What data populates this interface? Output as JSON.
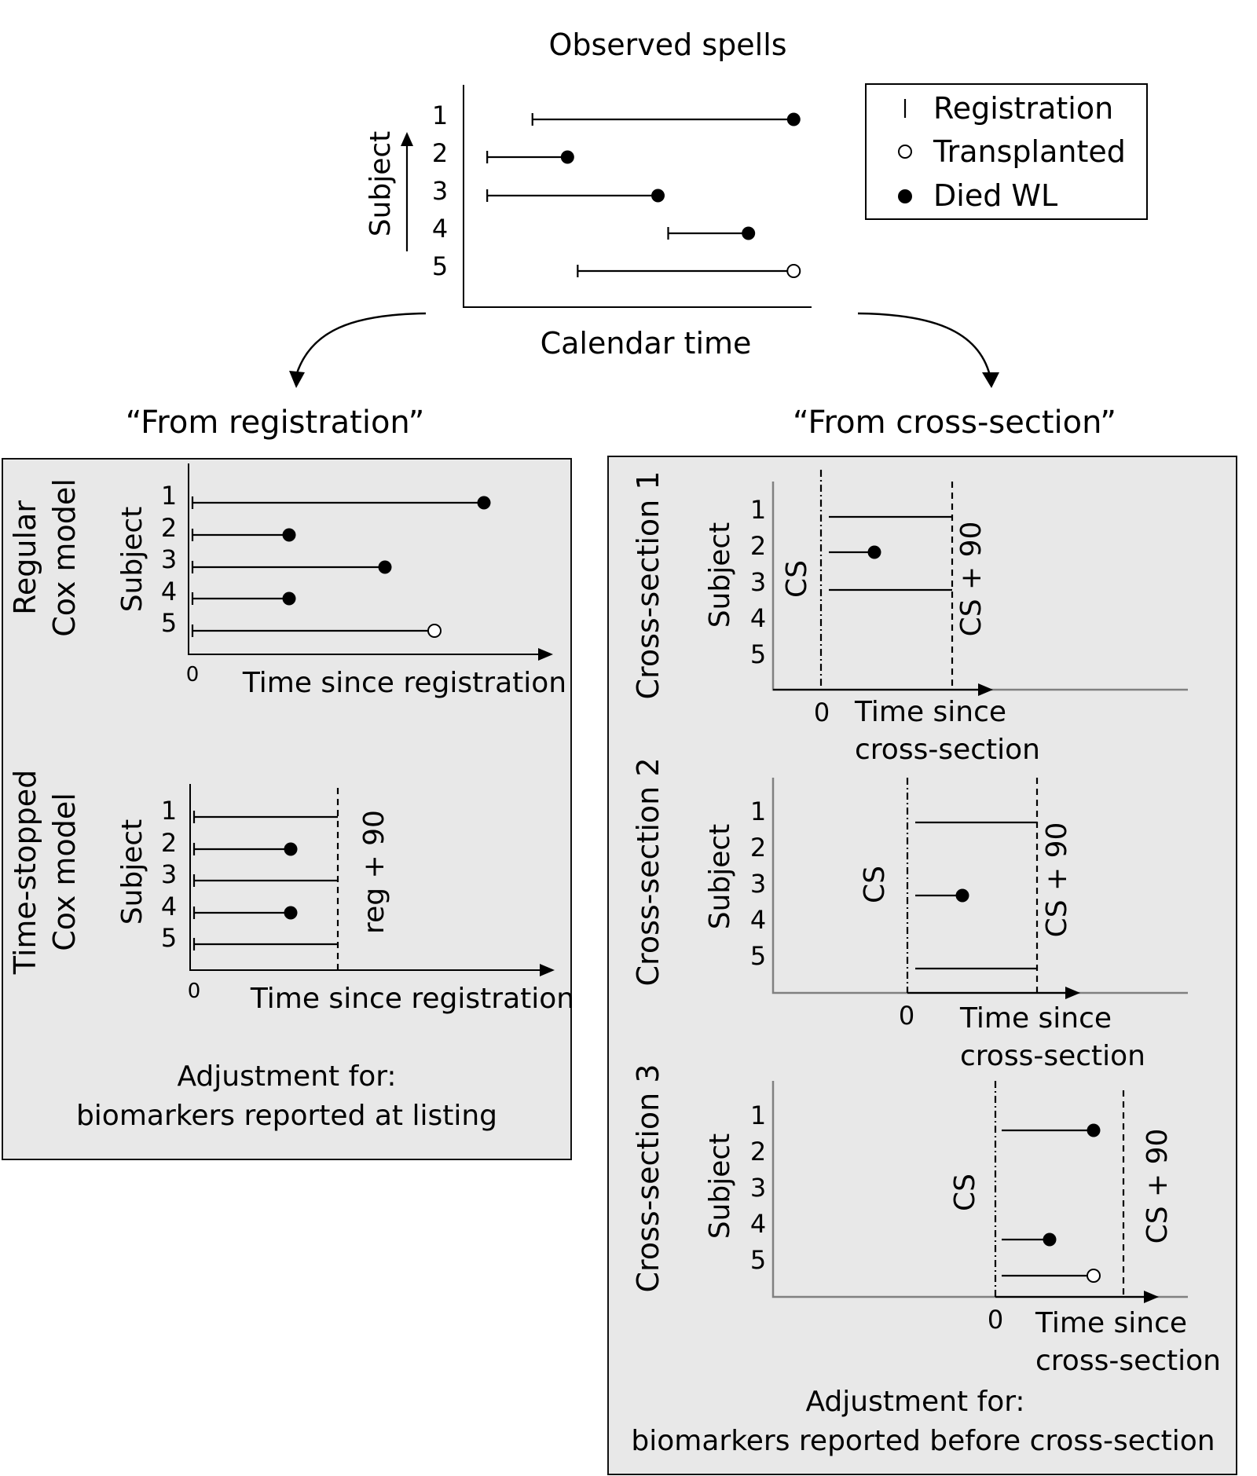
{
  "top": {
    "title": "Observed spells",
    "xlabel": "Calendar time",
    "ylabel": "Subject",
    "subjects": [
      "1",
      "2",
      "3",
      "4",
      "5"
    ],
    "spells": [
      {
        "subject": "1",
        "start": 0.18,
        "end": 0.96,
        "outcome": "Died WL"
      },
      {
        "subject": "2",
        "start": 0.05,
        "end": 0.31,
        "outcome": "Died WL"
      },
      {
        "subject": "3",
        "start": 0.05,
        "end": 0.57,
        "outcome": "Died WL"
      },
      {
        "subject": "4",
        "start": 0.57,
        "end": 0.83,
        "outcome": "Died WL"
      },
      {
        "subject": "5",
        "start": 0.31,
        "end": 0.96,
        "outcome": "Transplanted"
      }
    ]
  },
  "legend": {
    "registration": "Registration",
    "transplanted": "Transplanted",
    "died": "Died WL"
  },
  "left": {
    "heading": "“From registration”",
    "regular": {
      "label_line1": "Regular",
      "label_line2": "Cox model",
      "ylabel": "Subject",
      "xlabel": "Time since registration",
      "zero": "0",
      "subjects": [
        "1",
        "2",
        "3",
        "4",
        "5"
      ]
    },
    "stopped": {
      "label_line1": "Time-stopped",
      "label_line2": "Cox model",
      "ylabel": "Subject",
      "xlabel": "Time since registration",
      "zero": "0",
      "cutoff": "reg + 90",
      "subjects": [
        "1",
        "2",
        "3",
        "4",
        "5"
      ]
    },
    "adjust_line1": "Adjustment for:",
    "adjust_line2": "biomarkers reported at listing"
  },
  "right": {
    "heading": "“From cross-section”",
    "cs1": {
      "label": "Cross-section 1",
      "ylabel": "Subject",
      "cs": "CS",
      "cs90": "CS + 90",
      "zero": "0",
      "xlabel_line1": "Time since",
      "xlabel_line2": "cross-section",
      "subjects": [
        "1",
        "2",
        "3",
        "4",
        "5"
      ]
    },
    "cs2": {
      "label": "Cross-section 2",
      "ylabel": "Subject",
      "cs": "CS",
      "cs90": "CS + 90",
      "zero": "0",
      "xlabel_line1": "Time since",
      "xlabel_line2": "cross-section",
      "subjects": [
        "1",
        "2",
        "3",
        "4",
        "5"
      ]
    },
    "cs3": {
      "label": "Cross-section 3",
      "ylabel": "Subject",
      "cs": "CS",
      "cs90": "CS + 90",
      "zero": "0",
      "xlabel_line1": "Time since",
      "xlabel_line2": "cross-section",
      "subjects": [
        "1",
        "2",
        "3",
        "4",
        "5"
      ]
    },
    "adjust_line1": "Adjustment for:",
    "adjust_line2": "biomarkers reported before cross-section"
  }
}
